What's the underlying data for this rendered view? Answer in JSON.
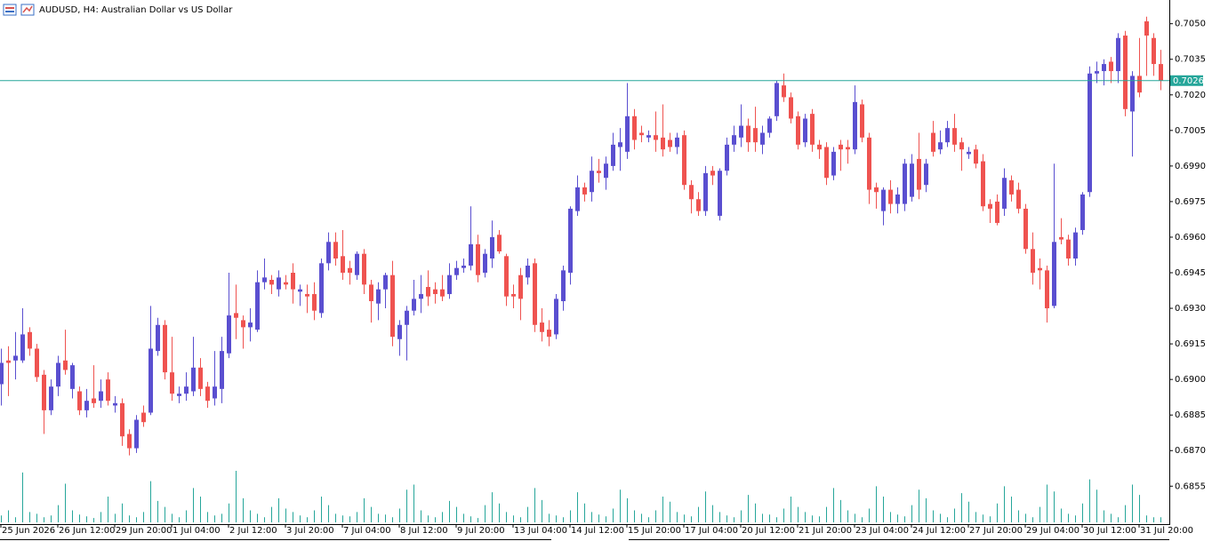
{
  "chart_data": {
    "type": "candlestick",
    "title": "AUDUSD, H4:  Australian Dollar vs US Dollar",
    "x": [
      "25 Jun 2026",
      null,
      null,
      null,
      null,
      null,
      null,
      null,
      "26 Jun 12:00",
      null,
      null,
      null,
      null,
      null,
      null,
      null,
      "29 Jun 20:00",
      null,
      null,
      null,
      null,
      null,
      null,
      null,
      "1 Jul 04:00",
      null,
      null,
      null,
      null,
      null,
      null,
      null,
      "2 Jul 12:00",
      null,
      null,
      null,
      null,
      null,
      null,
      null,
      "3 Jul 20:00",
      null,
      null,
      null,
      null,
      null,
      null,
      null,
      "7 Jul 04:00",
      null,
      null,
      null,
      null,
      null,
      null,
      null,
      "8 Jul 12:00",
      null,
      null,
      null,
      null,
      null,
      null,
      null,
      "9 Jul 20:00",
      null,
      null,
      null,
      null,
      null,
      null,
      null,
      "13 Jul 04:00",
      null,
      null,
      null,
      null,
      null,
      null,
      null,
      "14 Jul 12:00",
      null,
      null,
      null,
      null,
      null,
      null,
      null,
      "15 Jul 20:00",
      null,
      null,
      null,
      null,
      null,
      null,
      null,
      "17 Jul 04:00",
      null,
      null,
      null,
      null,
      null,
      null,
      null,
      "20 Jul 12:00",
      null,
      null,
      null,
      null,
      null,
      null,
      null,
      "21 Jul 20:00",
      null,
      null,
      null,
      null,
      null,
      null,
      null,
      "23 Jul 04:00",
      null,
      null,
      null,
      null,
      null,
      null,
      null,
      "24 Jul 12:00",
      null,
      null,
      null,
      null,
      null,
      null,
      null,
      "27 Jul 20:00",
      null,
      null,
      null,
      null,
      null,
      null,
      null,
      "29 Jul 04:00",
      null,
      null,
      null,
      null,
      null,
      null,
      null,
      "30 Jul 12:00",
      null,
      null,
      null,
      null,
      null,
      null,
      null,
      "31 Jul 20:00",
      null,
      null,
      null
    ],
    "open": [
      0.6898,
      0.6908,
      0.6908,
      0.6908,
      0.692,
      0.6913,
      0.6902,
      0.6887,
      0.6897,
      0.6908,
      0.6896,
      0.6895,
      0.6887,
      0.6892,
      0.6891,
      0.69,
      0.6889,
      0.689,
      0.6877,
      0.6871,
      0.6886,
      0.6886,
      0.6912,
      0.6923,
      0.6903,
      0.6893,
      0.6894,
      0.6895,
      0.6905,
      0.6897,
      0.6892,
      0.6896,
      0.6911,
      0.6928,
      0.6925,
      0.6922,
      0.6921,
      0.6941,
      0.6942,
      0.6938,
      0.6941,
      0.6945,
      0.6937,
      0.6936,
      0.6936,
      0.6928,
      0.6949,
      0.6958,
      0.6952,
      0.6947,
      0.6944,
      0.6953,
      0.694,
      0.6932,
      0.6938,
      0.6944,
      0.6917,
      0.6923,
      0.6929,
      0.6934,
      0.6939,
      0.6938,
      0.6938,
      0.6936,
      0.6944,
      0.6947,
      0.6948,
      0.6957,
      0.6945,
      0.6951,
      0.6961,
      0.6952,
      0.6936,
      0.6944,
      0.6943,
      0.6949,
      0.6924,
      0.6921,
      0.6919,
      0.6933,
      0.6945,
      0.6971,
      0.6981,
      0.6979,
      0.6988,
      0.6985,
      0.699,
      0.6998,
      0.6996,
      0.7011,
      0.7004,
      0.7002,
      0.7003,
      0.7002,
      0.7001,
      0.6998,
      0.7003,
      0.6982,
      0.6976,
      0.6971,
      0.6988,
      0.6969,
      0.6988,
      0.6999,
      0.7002,
      0.7007,
      0.7006,
      0.6999,
      0.7004,
      0.7011,
      0.7024,
      0.7019,
      0.7011,
      0.7,
      0.7012,
      0.6999,
      0.6998,
      0.6986,
      0.6999,
      0.6998,
      0.6997,
      0.7016,
      0.7002,
      0.6981,
      0.6971,
      0.698,
      0.6974,
      0.6974,
      0.6977,
      0.6993,
      0.6982,
      0.7004,
      0.6997,
      0.7,
      0.7006,
      0.7,
      0.6995,
      0.6997,
      0.6992,
      0.6974,
      0.6975,
      0.6972,
      0.6984,
      0.698,
      0.6972,
      0.6955,
      0.6947,
      0.6946,
      0.6931,
      0.696,
      0.6959,
      0.6951,
      0.6963,
      0.6979,
      0.7029,
      0.703,
      0.7034,
      0.703,
      0.7045,
      0.7013,
      0.7028,
      0.7051,
      0.7044,
      0.7033
    ],
    "high": [
      0.6913,
      0.6914,
      0.692,
      0.693,
      0.6922,
      0.6915,
      0.6904,
      0.69,
      0.691,
      0.6921,
      0.6907,
      0.6897,
      0.6896,
      0.6906,
      0.69,
      0.6903,
      0.6893,
      0.6892,
      0.6879,
      0.6885,
      0.6889,
      0.6931,
      0.6926,
      0.6925,
      0.6918,
      0.6897,
      0.6903,
      0.6918,
      0.6909,
      0.6899,
      0.6912,
      0.6918,
      0.6945,
      0.694,
      0.6927,
      0.693,
      0.6946,
      0.6951,
      0.6944,
      0.6946,
      0.6944,
      0.6949,
      0.694,
      0.694,
      0.6941,
      0.6951,
      0.6962,
      0.6962,
      0.6963,
      0.695,
      0.6954,
      0.6955,
      0.6942,
      0.6941,
      0.6945,
      0.695,
      0.6925,
      0.6931,
      0.6942,
      0.6944,
      0.6946,
      0.6941,
      0.6944,
      0.6949,
      0.695,
      0.6951,
      0.6973,
      0.6961,
      0.6955,
      0.6967,
      0.6963,
      0.6953,
      0.694,
      0.6947,
      0.6951,
      0.6951,
      0.693,
      0.6925,
      0.6936,
      0.6948,
      0.6973,
      0.6986,
      0.6983,
      0.6994,
      0.6993,
      0.6994,
      0.7004,
      0.7006,
      0.7025,
      0.7014,
      0.7007,
      0.7005,
      0.7013,
      0.7016,
      0.7004,
      0.7004,
      0.7005,
      0.6984,
      0.6979,
      0.699,
      0.699,
      0.6989,
      0.7002,
      0.7007,
      0.7016,
      0.701,
      0.7015,
      0.7007,
      0.7011,
      0.7026,
      0.7029,
      0.7021,
      0.7013,
      0.7012,
      0.7014,
      0.7001,
      0.7,
      0.6998,
      0.7001,
      0.7001,
      0.7024,
      0.7018,
      0.7004,
      0.6983,
      0.6981,
      0.6984,
      0.6981,
      0.6993,
      0.6995,
      0.7004,
      0.6993,
      0.7009,
      0.7005,
      0.7009,
      0.7012,
      0.7002,
      0.6998,
      0.6999,
      0.6995,
      0.6976,
      0.6978,
      0.6989,
      0.6986,
      0.6983,
      0.6974,
      0.6962,
      0.6951,
      0.6948,
      0.6991,
      0.6968,
      0.6961,
      0.6964,
      0.6979,
      0.7032,
      0.7034,
      0.7035,
      0.7036,
      0.7046,
      0.7047,
      0.703,
      0.7044,
      0.7053,
      0.7046,
      0.7039
    ],
    "low": [
      0.6889,
      0.6893,
      0.69,
      0.6907,
      0.691,
      0.6899,
      0.6877,
      0.6885,
      0.6893,
      0.6902,
      0.6892,
      0.6885,
      0.6884,
      0.6888,
      0.6888,
      0.6889,
      0.6886,
      0.6872,
      0.6868,
      0.6869,
      0.688,
      0.6885,
      0.691,
      0.69,
      0.6891,
      0.689,
      0.6891,
      0.6893,
      0.6893,
      0.6888,
      0.6889,
      0.689,
      0.6909,
      0.6917,
      0.6913,
      0.6916,
      0.692,
      0.6938,
      0.6936,
      0.6935,
      0.6938,
      0.6932,
      0.6931,
      0.6928,
      0.6925,
      0.6926,
      0.6946,
      0.6948,
      0.6942,
      0.694,
      0.6942,
      0.6936,
      0.6924,
      0.6925,
      0.693,
      0.6914,
      0.691,
      0.6908,
      0.6927,
      0.6928,
      0.6931,
      0.6932,
      0.6933,
      0.6934,
      0.6942,
      0.6945,
      0.6946,
      0.6941,
      0.6943,
      0.6947,
      0.6953,
      0.6931,
      0.693,
      0.6925,
      0.694,
      0.692,
      0.6916,
      0.6914,
      0.6917,
      0.6929,
      0.694,
      0.6969,
      0.6975,
      0.6975,
      0.6983,
      0.698,
      0.6988,
      0.6988,
      0.6993,
      0.6997,
      0.7,
      0.7,
      0.6996,
      0.6994,
      0.6996,
      0.6995,
      0.698,
      0.697,
      0.6969,
      0.6969,
      0.6982,
      0.6967,
      0.6986,
      0.6996,
      0.6998,
      0.6996,
      0.6996,
      0.6995,
      0.7002,
      0.7009,
      0.7017,
      0.7008,
      0.6997,
      0.6998,
      0.6996,
      0.6993,
      0.6982,
      0.6984,
      0.6988,
      0.6991,
      0.6995,
      0.7,
      0.6974,
      0.6972,
      0.6965,
      0.697,
      0.697,
      0.6971,
      0.6975,
      0.6976,
      0.6979,
      0.6994,
      0.6995,
      0.6998,
      0.6996,
      0.6988,
      0.6993,
      0.6989,
      0.6971,
      0.6966,
      0.6965,
      0.6969,
      0.6975,
      0.697,
      0.6953,
      0.694,
      0.6938,
      0.6924,
      0.693,
      0.6957,
      0.6948,
      0.6948,
      0.6961,
      0.6977,
      0.7025,
      0.7024,
      0.7025,
      0.7025,
      0.7011,
      0.6994,
      0.7019,
      0.7028,
      0.7028,
      0.7022
    ],
    "close": [
      0.6907,
      0.6907,
      0.691,
      0.6919,
      0.6913,
      0.6901,
      0.6887,
      0.6897,
      0.6907,
      0.6904,
      0.6906,
      0.6887,
      0.6891,
      0.689,
      0.6895,
      0.6891,
      0.689,
      0.6876,
      0.6871,
      0.6883,
      0.6882,
      0.6913,
      0.6923,
      0.6903,
      0.6894,
      0.6894,
      0.6897,
      0.6905,
      0.6896,
      0.6891,
      0.6897,
      0.6912,
      0.6927,
      0.6926,
      0.6922,
      0.6924,
      0.6941,
      0.6943,
      0.694,
      0.6943,
      0.694,
      0.6938,
      0.6938,
      0.6935,
      0.6929,
      0.6949,
      0.6958,
      0.6951,
      0.6945,
      0.6945,
      0.6953,
      0.694,
      0.6933,
      0.6938,
      0.6944,
      0.6918,
      0.6923,
      0.6929,
      0.6934,
      0.6936,
      0.6935,
      0.6936,
      0.6935,
      0.6944,
      0.6947,
      0.6948,
      0.6957,
      0.6944,
      0.6953,
      0.696,
      0.6954,
      0.6935,
      0.6935,
      0.6934,
      0.6948,
      0.6923,
      0.692,
      0.6918,
      0.6934,
      0.6946,
      0.6972,
      0.6981,
      0.6978,
      0.6988,
      0.6987,
      0.6991,
      0.6999,
      0.7,
      0.7011,
      0.7001,
      0.7003,
      0.7003,
      0.7001,
      0.6997,
      0.6998,
      0.7002,
      0.6982,
      0.6976,
      0.6971,
      0.6987,
      0.6986,
      0.6988,
      0.6999,
      0.7003,
      0.7007,
      0.7,
      0.7,
      0.7004,
      0.701,
      0.7025,
      0.7019,
      0.701,
      0.6999,
      0.701,
      0.6999,
      0.6997,
      0.6985,
      0.6996,
      0.6997,
      0.6997,
      0.7017,
      0.7002,
      0.698,
      0.6979,
      0.698,
      0.6974,
      0.6978,
      0.6991,
      0.6991,
      0.698,
      0.6991,
      0.6996,
      0.7,
      0.7006,
      0.6999,
      0.6997,
      0.6996,
      0.6991,
      0.6973,
      0.6972,
      0.6966,
      0.6985,
      0.6978,
      0.6972,
      0.6955,
      0.6945,
      0.6946,
      0.693,
      0.6958,
      0.6959,
      0.6951,
      0.6962,
      0.6978,
      0.7029,
      0.703,
      0.7033,
      0.703,
      0.7044,
      0.7014,
      0.7028,
      0.7021,
      0.7045,
      0.7033,
      0.7026
    ],
    "volume": [
      8,
      14,
      6,
      58,
      12,
      10,
      6,
      8,
      20,
      45,
      14,
      9,
      7,
      5,
      12,
      30,
      10,
      22,
      8,
      6,
      12,
      48,
      25,
      18,
      10,
      6,
      14,
      40,
      30,
      12,
      8,
      10,
      22,
      60,
      28,
      14,
      10,
      6,
      18,
      28,
      16,
      12,
      8,
      6,
      14,
      30,
      20,
      10,
      8,
      7,
      12,
      28,
      18,
      10,
      9,
      6,
      16,
      38,
      44,
      14,
      8,
      6,
      12,
      25,
      18,
      10,
      7,
      5,
      20,
      35,
      22,
      12,
      8,
      6,
      18,
      40,
      26,
      10,
      8,
      6,
      14,
      35,
      22,
      12,
      9,
      7,
      16,
      38,
      28,
      14,
      10,
      6,
      14,
      30,
      24,
      12,
      9,
      7,
      18,
      36,
      20,
      12,
      8,
      6,
      14,
      32,
      22,
      10,
      9,
      6,
      16,
      30,
      18,
      12,
      8,
      7,
      18,
      40,
      26,
      14,
      10,
      6,
      16,
      42,
      30,
      12,
      9,
      7,
      20,
      38,
      28,
      14,
      10,
      6,
      16,
      34,
      24,
      12,
      9,
      7,
      22,
      42,
      30,
      14,
      10,
      6,
      18,
      44,
      36,
      16,
      10,
      8,
      22,
      50,
      38,
      14,
      10,
      6,
      20,
      44,
      32,
      8,
      6,
      6
    ],
    "up_color": "#5a4fd0",
    "down_color": "#ef5350",
    "volume_color": "#26a69a",
    "price_line_color": "#26a69a",
    "current_price": 0.7026,
    "ylim": [
      0.6839,
      0.706
    ],
    "yticks": [
      0.6855,
      {
        "value": 0.687,
        "label": "0.6870"
      },
      0.6885,
      {
        "value": 0.69,
        "label": "0.6900"
      },
      0.6915,
      {
        "value": 0.693,
        "label": "0.6930"
      },
      0.6945,
      {
        "value": 0.696,
        "label": "0.6960"
      },
      0.6975,
      {
        "value": 0.699,
        "label": "0.6990"
      },
      0.7005,
      {
        "value": 0.702,
        "label": "0.7020"
      },
      0.7035,
      {
        "value": 0.705,
        "label": "0.7050"
      }
    ],
    "grid": false
  }
}
